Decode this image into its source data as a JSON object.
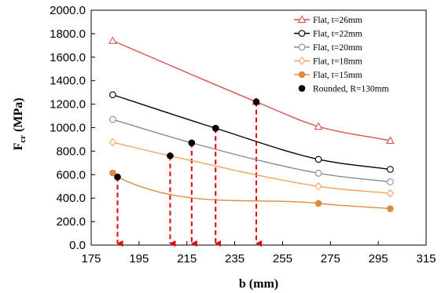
{
  "chart_data": {
    "type": "scatter",
    "title": "",
    "xlabel": "b (mm)",
    "ylabel": {
      "main": "F",
      "sub": "cr",
      "unit": " (MPa)"
    },
    "xlim": [
      175,
      315
    ],
    "ylim": [
      0,
      2000
    ],
    "xticks": [
      "175",
      "195",
      "215",
      "235",
      "255",
      "275",
      "295",
      "315"
    ],
    "yticks": [
      "0.0",
      "200.0",
      "400.0",
      "600.0",
      "800.0",
      "1000.0",
      "1200.0",
      "1400.0",
      "1600.0",
      "1800.0",
      "2000.0"
    ],
    "grid": false,
    "legend_position": "top-right",
    "series": [
      {
        "name": "Flat, t=26mm",
        "color": "#d9534f",
        "marker": "triangle-open",
        "line": true,
        "x": [
          184,
          244,
          270,
          300
        ],
        "y": [
          1740,
          1220,
          1010,
          890
        ]
      },
      {
        "name": "Flat, t=22mm",
        "color": "#000000",
        "marker": "circle-open",
        "line": true,
        "x": [
          184,
          227,
          270,
          300
        ],
        "y": [
          1280,
          995,
          730,
          645
        ]
      },
      {
        "name": "Flat, t=20mm",
        "color": "#8c8c8c",
        "marker": "circle-open",
        "line": true,
        "x": [
          184,
          217,
          270,
          300
        ],
        "y": [
          1070,
          870,
          612,
          538
        ]
      },
      {
        "name": "Flat, t=18mm",
        "color": "#f4a460",
        "marker": "diamond-open",
        "line": true,
        "x": [
          184,
          208,
          270,
          300
        ],
        "y": [
          875,
          760,
          500,
          440
        ]
      },
      {
        "name": "Flat, t=15mm",
        "color": "#e08a3c",
        "marker": "circle-filled",
        "line": true,
        "x": [
          184,
          186,
          270,
          300
        ],
        "y": [
          615,
          580,
          355,
          310
        ]
      },
      {
        "name": "Rounded, R=130mm",
        "color": "#000000",
        "marker": "circle-filled",
        "line": false,
        "x": [
          186,
          208,
          217,
          227,
          244
        ],
        "y": [
          580,
          760,
          870,
          995,
          1220
        ]
      }
    ],
    "annotations": [
      {
        "type": "dashed-arrow-down",
        "color": "#e00000",
        "x": 186,
        "from_y": 580,
        "to_y": 0
      },
      {
        "type": "dashed-arrow-down",
        "color": "#e00000",
        "x": 208,
        "from_y": 760,
        "to_y": 0
      },
      {
        "type": "dashed-arrow-down",
        "color": "#e00000",
        "x": 217,
        "from_y": 870,
        "to_y": 0
      },
      {
        "type": "dashed-arrow-down",
        "color": "#e00000",
        "x": 227,
        "from_y": 995,
        "to_y": 0
      },
      {
        "type": "dashed-arrow-down",
        "color": "#e00000",
        "x": 244,
        "from_y": 1220,
        "to_y": 0
      }
    ]
  }
}
